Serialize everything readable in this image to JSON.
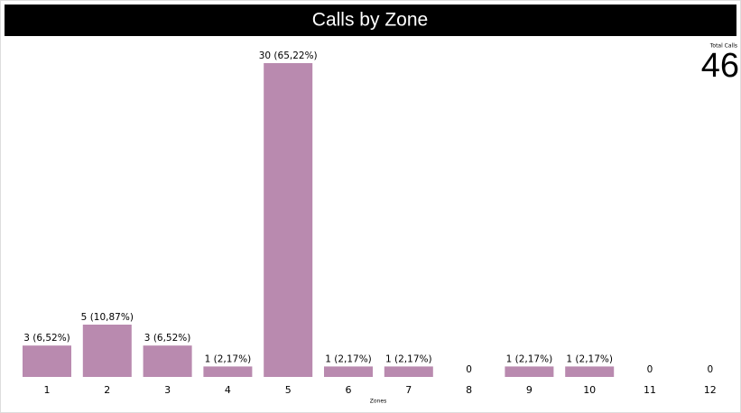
{
  "chart_data": {
    "type": "bar",
    "title": "Calls by Zone",
    "x_label": "Zones",
    "categories": [
      "1",
      "2",
      "3",
      "4",
      "5",
      "6",
      "7",
      "8",
      "9",
      "10",
      "11",
      "12"
    ],
    "values": [
      3,
      5,
      3,
      1,
      30,
      1,
      1,
      0,
      1,
      1,
      0,
      0
    ],
    "value_labels": [
      "3 (6,52%)",
      "5 (10,87%)",
      "3 (6,52%)",
      "1 (2,17%)",
      "30 (65,22%)",
      "1 (2,17%)",
      "1 (2,17%)",
      "0",
      "1 (2,17%)",
      "1 (2,17%)",
      "0",
      "0"
    ],
    "color": "#b98aaf",
    "total_calls": {
      "label": "Total Calls",
      "value": 46
    }
  }
}
